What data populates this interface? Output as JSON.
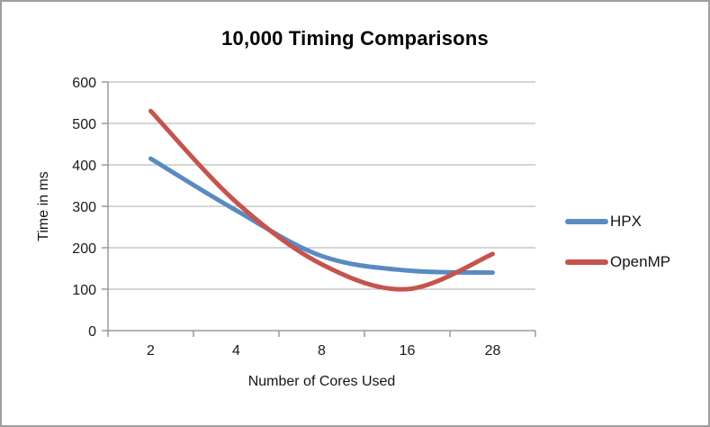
{
  "chart_data": {
    "type": "line",
    "title": "10,000 Timing Comparisons",
    "xlabel": "Number of Cores Used",
    "ylabel": "Time in ms",
    "categories": [
      "2",
      "4",
      "8",
      "16",
      "28"
    ],
    "series": [
      {
        "name": "HPX",
        "color": "#5a8ac2",
        "values": [
          415,
          290,
          180,
          145,
          140
        ]
      },
      {
        "name": "OpenMP",
        "color": "#c5534e",
        "values": [
          530,
          310,
          160,
          100,
          185
        ]
      }
    ],
    "ylim": [
      0,
      600
    ],
    "y_ticks": [
      0,
      100,
      200,
      300,
      400,
      500,
      600
    ],
    "grid": "horizontal",
    "legend_position": "right",
    "smooth_lines": true,
    "line_width": 5,
    "grid_color": "#ababab",
    "axis_color": "#9a9a9a",
    "tick_label_color": "#1a1a1a"
  }
}
